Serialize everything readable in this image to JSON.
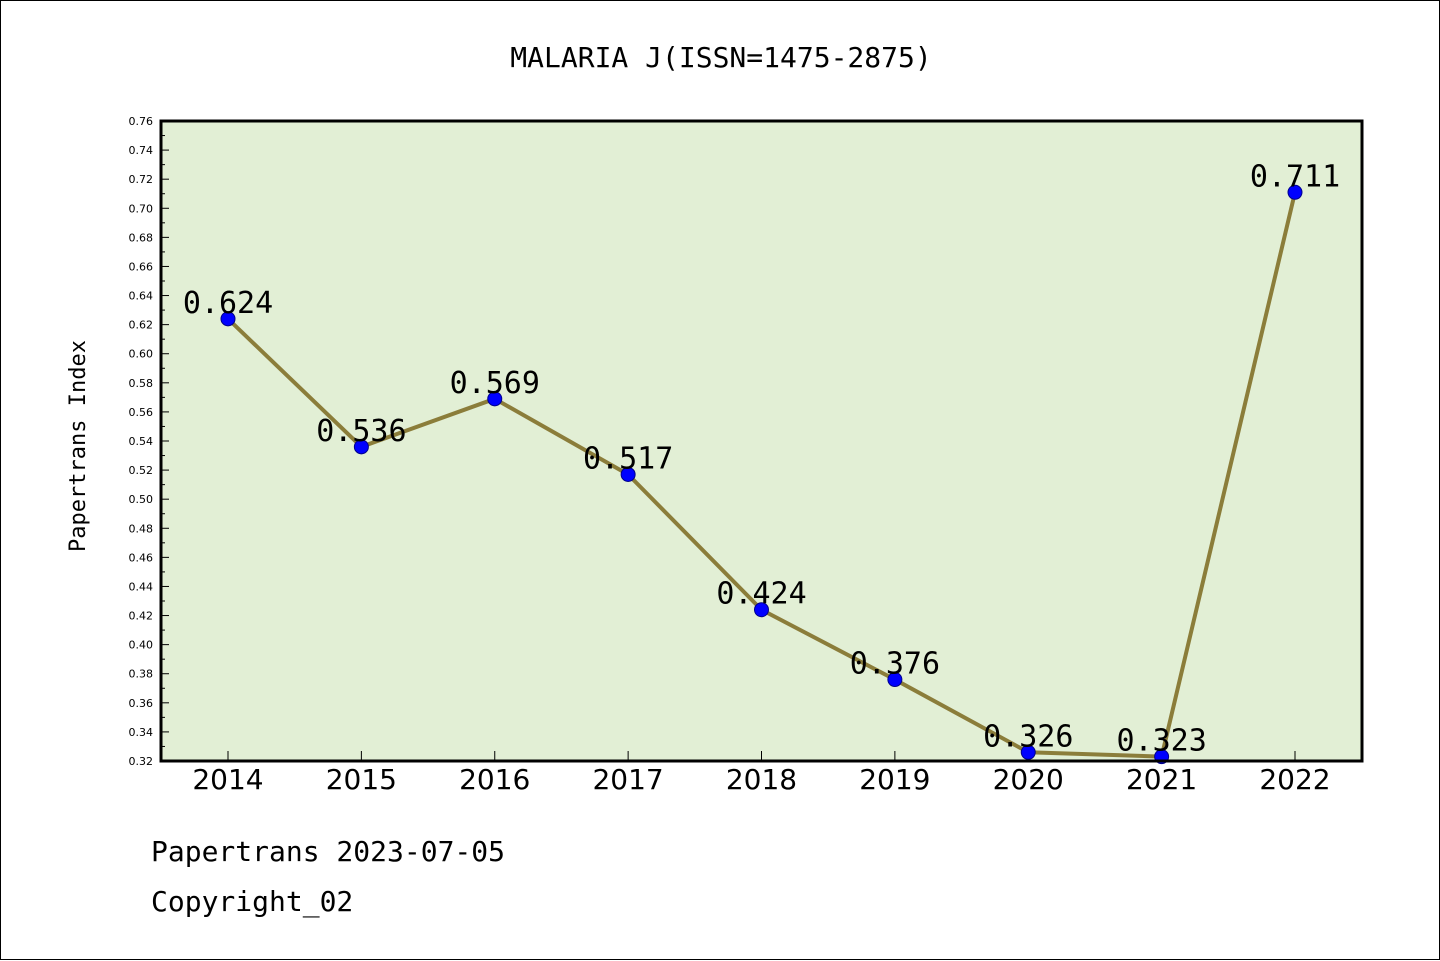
{
  "footer": {
    "date_line": "Papertrans 2023-07-05",
    "copyright": "Copyright_02"
  },
  "chart_data": {
    "type": "line",
    "title": "MALARIA J(ISSN=1475-2875)",
    "xlabel": "",
    "ylabel": "Papertrans Index",
    "categories": [
      "2014",
      "2015",
      "2016",
      "2017",
      "2018",
      "2019",
      "2020",
      "2021",
      "2022"
    ],
    "series": [
      {
        "values": [
          0.624,
          0.536,
          0.569,
          0.517,
          0.424,
          0.376,
          0.326,
          0.323,
          0.711
        ],
        "data_labels": [
          "0.624",
          "0.536",
          "0.569",
          "0.517",
          "0.424",
          "0.376",
          "0.326",
          "0.323",
          "0.711"
        ],
        "line_color": "#8b7d3a",
        "marker_color": "#0000ff"
      }
    ],
    "ylim": [
      0.32,
      0.76
    ],
    "yticks": [
      "0.32",
      "0.34",
      "0.36",
      "0.38",
      "0.40",
      "0.42",
      "0.44",
      "0.46",
      "0.48",
      "0.50",
      "0.52",
      "0.54",
      "0.56",
      "0.58",
      "0.60",
      "0.62",
      "0.64",
      "0.66",
      "0.68",
      "0.70",
      "0.72",
      "0.74",
      "0.76"
    ],
    "plot_background": "#e2efd5",
    "grid": false,
    "legend": "none"
  }
}
